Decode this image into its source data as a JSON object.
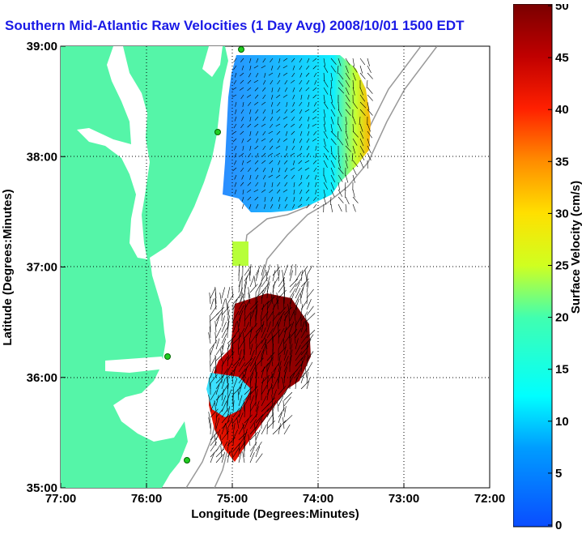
{
  "title": "Southern Mid-Atlantic Raw Velocities (1 Day Avg) 2008/10/01 1500 EDT",
  "axes": {
    "xlabel": "Longitude (Degrees:Minutes)",
    "ylabel": "Latitude (Degrees:Minutes)",
    "x_ticks": [
      "77:00",
      "76:00",
      "75:00",
      "74:00",
      "73:00",
      "72:00"
    ],
    "y_ticks": [
      "39:00",
      "38:00",
      "37:00",
      "36:00",
      "35:00"
    ]
  },
  "colorbar": {
    "label": "Surface Velocity (cm/s)",
    "ticks": [
      "50",
      "45",
      "40",
      "35",
      "30",
      "25",
      "20",
      "15",
      "10",
      "5",
      "0"
    ],
    "range": [
      0,
      50
    ]
  },
  "colors": {
    "land": "#55f5a8",
    "title": "#1a1ae6",
    "station": "#22cc22"
  }
}
